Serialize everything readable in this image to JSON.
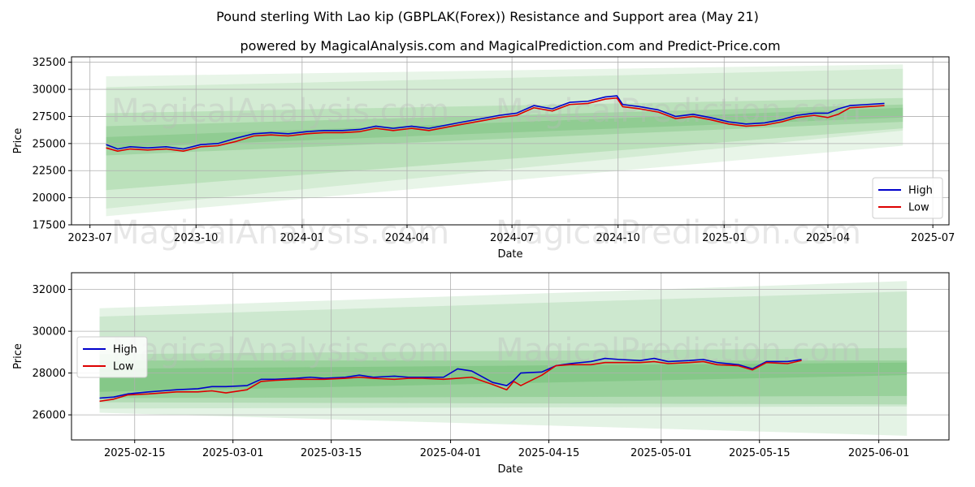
{
  "title": "Pound sterling With Lao kip (GBPLAK(Forex)) Resistance and Support area (May 21)",
  "subtitle": "powered by MagicalAnalysis.com and MagicalPrediction.com and Predict-Price.com",
  "watermarks": [
    "MagicalAnalysis.com",
    "MagicalPrediction.com"
  ],
  "colors": {
    "high": "#0000cc",
    "low": "#dd0000",
    "band": "#4caf50",
    "grid": "#b0b0b0"
  },
  "chart_data": [
    {
      "type": "line",
      "xlabel": "Date",
      "ylabel": "Price",
      "xlim": [
        "2023-06-15",
        "2025-07-15"
      ],
      "ylim": [
        17500,
        33000
      ],
      "xticks": [
        "2023-07",
        "2023-10",
        "2024-01",
        "2024-04",
        "2024-07",
        "2024-10",
        "2025-01",
        "2025-04",
        "2025-07"
      ],
      "xtick_dates": [
        "2023-07-01",
        "2023-10-01",
        "2024-01-01",
        "2024-04-01",
        "2024-07-01",
        "2024-10-01",
        "2025-01-01",
        "2025-04-01",
        "2025-07-01"
      ],
      "yticks": [
        17500,
        20000,
        22500,
        25000,
        27500,
        30000,
        32500
      ],
      "grid": true,
      "legend": "lower-right",
      "x": [
        "2023-07-15",
        "2023-07-25",
        "2023-08-05",
        "2023-08-20",
        "2023-09-05",
        "2023-09-20",
        "2023-10-05",
        "2023-10-20",
        "2023-11-05",
        "2023-11-20",
        "2023-12-05",
        "2023-12-20",
        "2024-01-05",
        "2024-01-20",
        "2024-02-05",
        "2024-02-20",
        "2024-03-05",
        "2024-03-20",
        "2024-04-05",
        "2024-04-20",
        "2024-05-05",
        "2024-05-20",
        "2024-06-05",
        "2024-06-20",
        "2024-07-05",
        "2024-07-20",
        "2024-08-05",
        "2024-08-20",
        "2024-09-05",
        "2024-09-20",
        "2024-09-30",
        "2024-10-05",
        "2024-10-20",
        "2024-11-05",
        "2024-11-20",
        "2024-12-05",
        "2024-12-20",
        "2025-01-05",
        "2025-01-20",
        "2025-02-05",
        "2025-02-20",
        "2025-03-05",
        "2025-03-20",
        "2025-04-01",
        "2025-04-10",
        "2025-04-20",
        "2025-05-05",
        "2025-05-20"
      ],
      "series": [
        {
          "name": "High",
          "values": [
            24900,
            24500,
            24700,
            24600,
            24700,
            24500,
            24900,
            25000,
            25500,
            25900,
            26000,
            25900,
            26100,
            26200,
            26200,
            26300,
            26600,
            26400,
            26600,
            26400,
            26700,
            27000,
            27300,
            27600,
            27800,
            28500,
            28200,
            28800,
            28900,
            29300,
            29400,
            28600,
            28400,
            28100,
            27500,
            27700,
            27400,
            27000,
            26800,
            26900,
            27200,
            27600,
            27800,
            27800,
            28200,
            28500,
            28600,
            28700
          ]
        },
        {
          "name": "Low",
          "values": [
            24600,
            24300,
            24500,
            24400,
            24500,
            24300,
            24700,
            24800,
            25200,
            25700,
            25800,
            25700,
            25900,
            26000,
            26000,
            26100,
            26400,
            26200,
            26400,
            26200,
            26500,
            26800,
            27100,
            27400,
            27600,
            28300,
            28000,
            28600,
            28700,
            29100,
            29200,
            28400,
            28200,
            27900,
            27300,
            27500,
            27200,
            26800,
            26600,
            26700,
            27000,
            27400,
            27600,
            27400,
            27700,
            28300,
            28400,
            28500
          ]
        }
      ],
      "bands": [
        {
          "x0": "2023-07-15",
          "x1": "2025-06-05",
          "top0": 31200,
          "top1": 32300,
          "bot0": 18300,
          "bot1": 24800,
          "opacity": 0.13
        },
        {
          "x0": "2023-07-15",
          "x1": "2025-06-05",
          "top0": 30200,
          "top1": 31900,
          "bot0": 19000,
          "bot1": 26200,
          "opacity": 0.13
        },
        {
          "x0": "2023-07-15",
          "x1": "2025-06-05",
          "top0": 27800,
          "top1": 29200,
          "bot0": 20700,
          "bot1": 26400,
          "opacity": 0.18
        },
        {
          "x0": "2023-07-15",
          "x1": "2025-06-05",
          "top0": 26600,
          "top1": 28600,
          "bot0": 23900,
          "bot1": 27000,
          "opacity": 0.22
        },
        {
          "x0": "2023-07-15",
          "x1": "2025-06-05",
          "top0": 25600,
          "top1": 28300,
          "bot0": 24600,
          "bot1": 27400,
          "opacity": 0.22
        }
      ]
    },
    {
      "type": "line",
      "xlabel": "Date",
      "ylabel": "Price",
      "xlim": [
        "2025-02-06",
        "2025-06-11"
      ],
      "ylim": [
        24800,
        32800
      ],
      "xticks": [
        "2025-02-15",
        "2025-03-01",
        "2025-03-15",
        "2025-04-01",
        "2025-04-15",
        "2025-05-01",
        "2025-05-15",
        "2025-06-01"
      ],
      "yticks": [
        26000,
        28000,
        30000,
        32000
      ],
      "grid": true,
      "legend": "upper-left",
      "x": [
        "2025-02-10",
        "2025-02-12",
        "2025-02-14",
        "2025-02-17",
        "2025-02-19",
        "2025-02-21",
        "2025-02-24",
        "2025-02-26",
        "2025-02-28",
        "2025-03-03",
        "2025-03-05",
        "2025-03-07",
        "2025-03-10",
        "2025-03-12",
        "2025-03-14",
        "2025-03-17",
        "2025-03-19",
        "2025-03-21",
        "2025-03-24",
        "2025-03-26",
        "2025-03-28",
        "2025-03-31",
        "2025-04-02",
        "2025-04-04",
        "2025-04-07",
        "2025-04-09",
        "2025-04-10",
        "2025-04-11",
        "2025-04-14",
        "2025-04-16",
        "2025-04-18",
        "2025-04-21",
        "2025-04-23",
        "2025-04-25",
        "2025-04-28",
        "2025-04-30",
        "2025-05-02",
        "2025-05-05",
        "2025-05-07",
        "2025-05-09",
        "2025-05-12",
        "2025-05-14",
        "2025-05-16",
        "2025-05-19",
        "2025-05-21"
      ],
      "series": [
        {
          "name": "High",
          "values": [
            26800,
            26850,
            27000,
            27100,
            27150,
            27200,
            27250,
            27350,
            27350,
            27400,
            27700,
            27700,
            27750,
            27800,
            27750,
            27800,
            27900,
            27800,
            27850,
            27800,
            27800,
            27800,
            28200,
            28100,
            27550,
            27400,
            27650,
            28000,
            28050,
            28350,
            28450,
            28550,
            28700,
            28650,
            28600,
            28700,
            28550,
            28600,
            28650,
            28500,
            28400,
            28200,
            28550,
            28550,
            28650
          ]
        },
        {
          "name": "Low",
          "values": [
            26650,
            26750,
            26950,
            27000,
            27050,
            27100,
            27100,
            27150,
            27050,
            27200,
            27600,
            27650,
            27700,
            27700,
            27700,
            27750,
            27800,
            27750,
            27700,
            27750,
            27750,
            27700,
            27750,
            27800,
            27450,
            27200,
            27600,
            27400,
            27900,
            28350,
            28400,
            28400,
            28500,
            28500,
            28500,
            28550,
            28450,
            28500,
            28550,
            28400,
            28350,
            28150,
            28500,
            28450,
            28600
          ]
        }
      ],
      "bands": [
        {
          "x0": "2025-02-10",
          "x1": "2025-06-05",
          "top0": 31100,
          "top1": 32400,
          "bot0": 26100,
          "bot1": 25000,
          "opacity": 0.15
        },
        {
          "x0": "2025-02-10",
          "x1": "2025-06-05",
          "top0": 30700,
          "top1": 31900,
          "bot0": 26300,
          "bot1": 26400,
          "opacity": 0.15
        },
        {
          "x0": "2025-02-10",
          "x1": "2025-06-05",
          "top0": 28900,
          "top1": 29200,
          "bot0": 26600,
          "bot1": 26500,
          "opacity": 0.2
        },
        {
          "x0": "2025-02-10",
          "x1": "2025-06-05",
          "top0": 28600,
          "top1": 28600,
          "bot0": 26800,
          "bot1": 26900,
          "opacity": 0.25
        },
        {
          "x0": "2025-02-10",
          "x1": "2025-06-05",
          "top0": 28200,
          "top1": 28500,
          "bot0": 27100,
          "bot1": 27900,
          "opacity": 0.25
        }
      ]
    }
  ]
}
